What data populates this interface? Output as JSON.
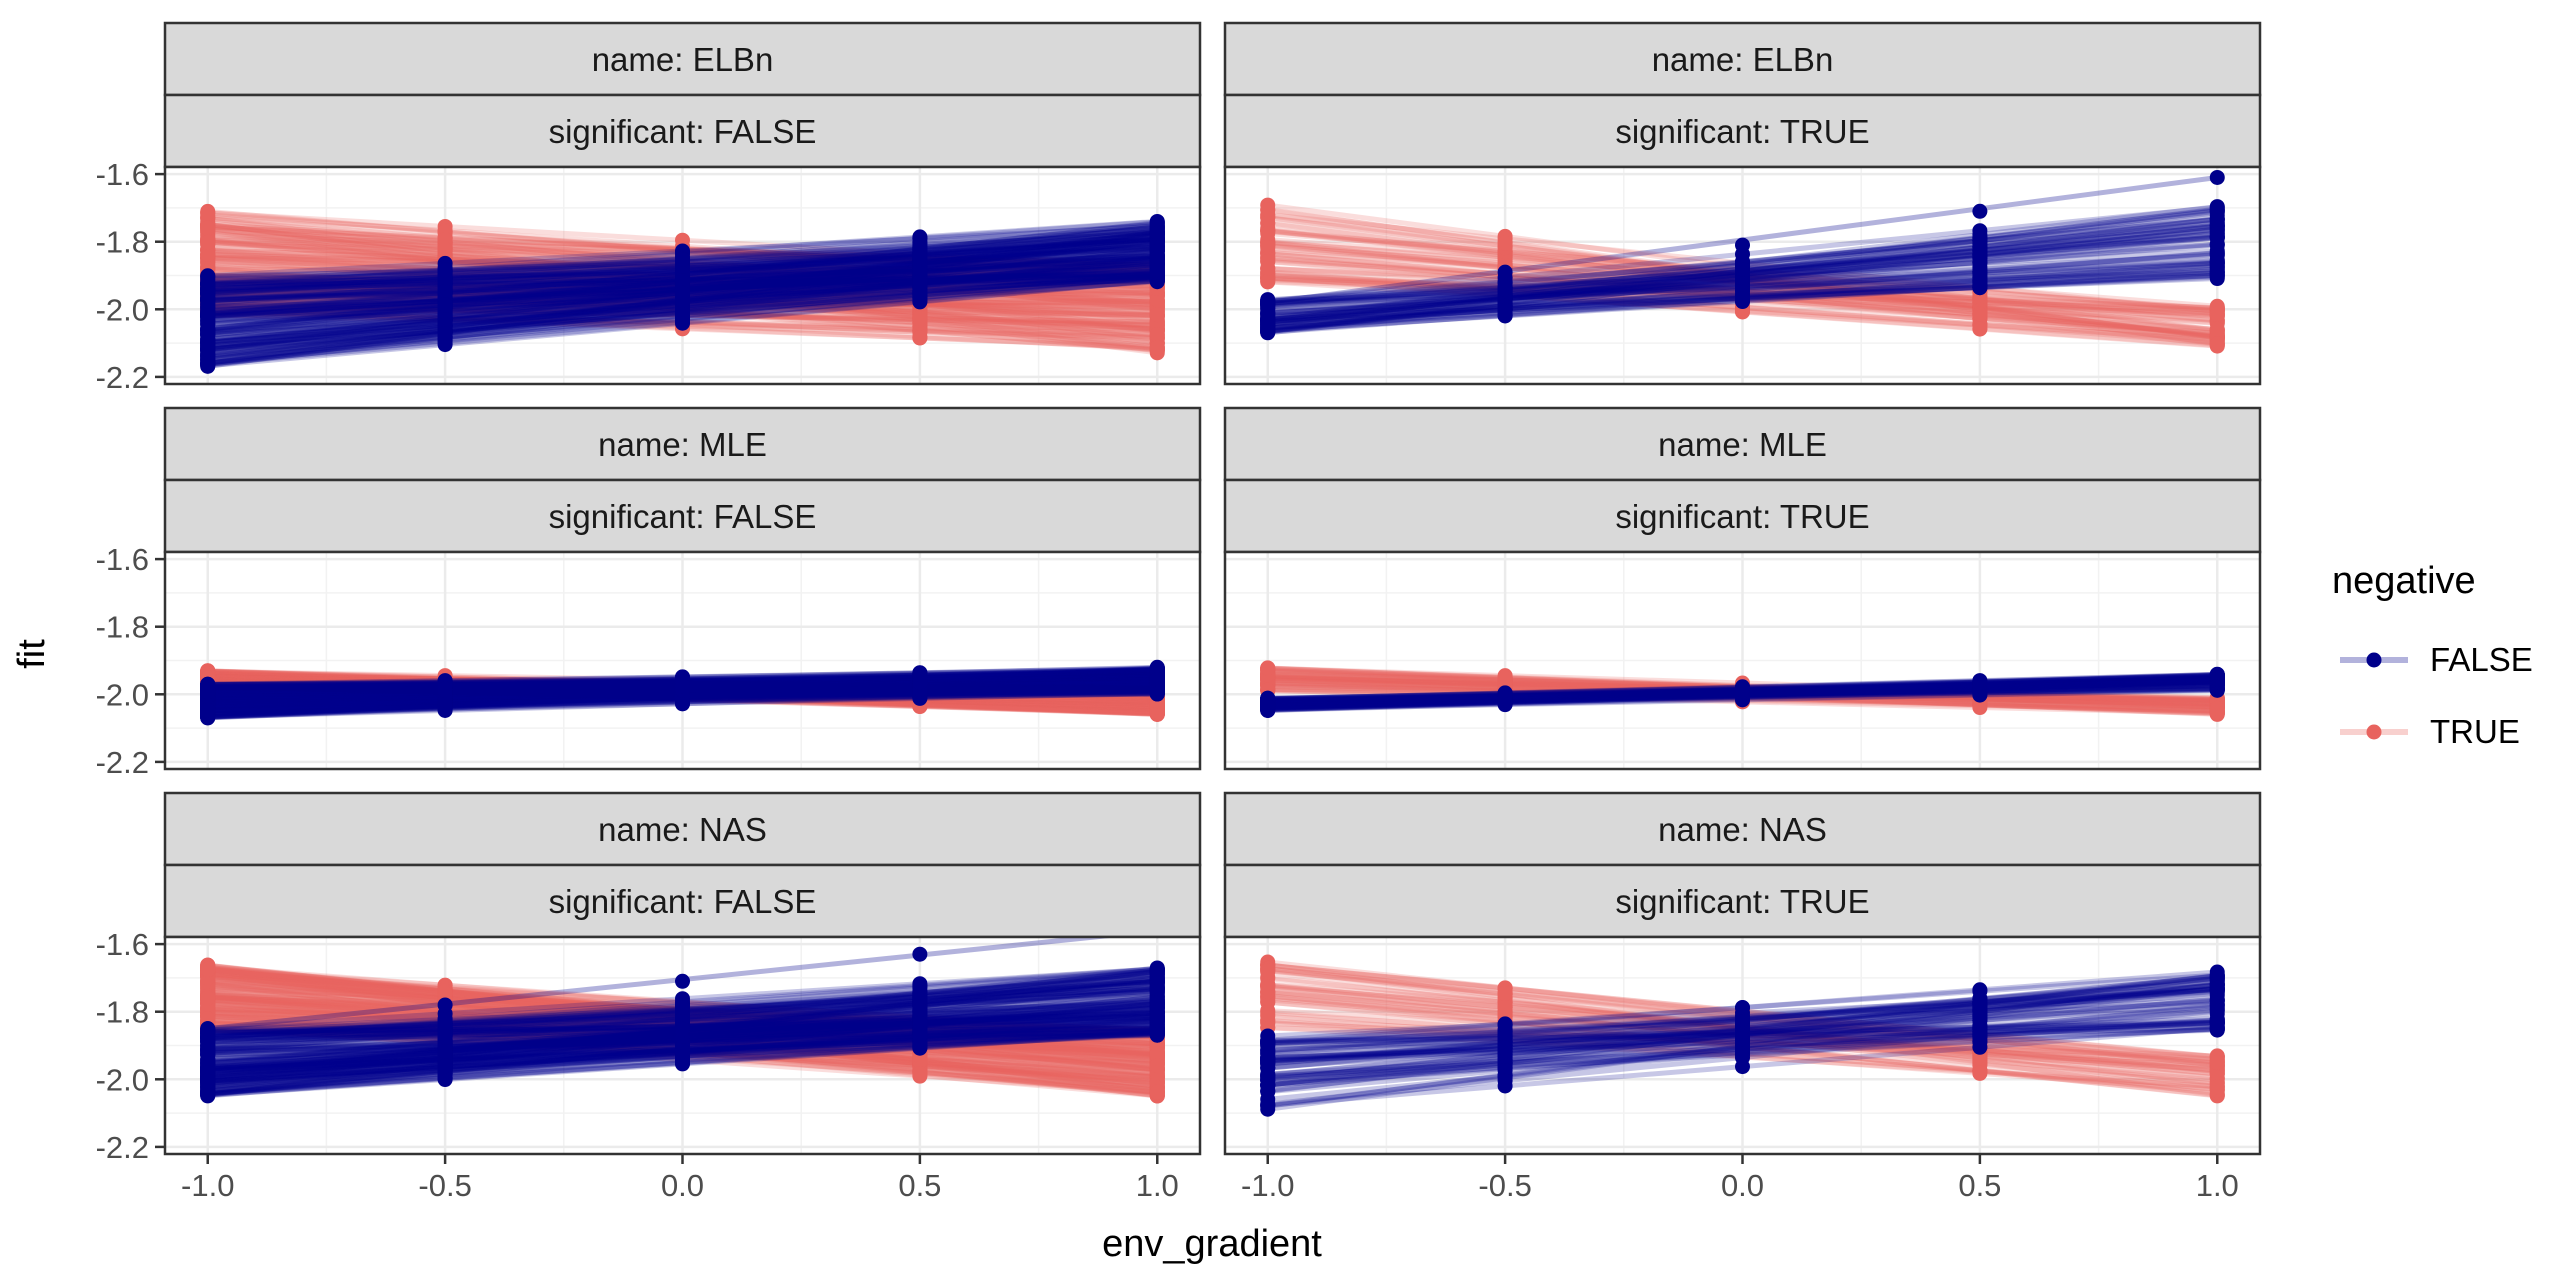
{
  "chart_data": {
    "type": "line",
    "facet_rows_var": "name",
    "facet_cols_var": "significant",
    "xlabel": "env_gradient",
    "ylabel": "fit",
    "xlim": [
      -1.0,
      1.0
    ],
    "ylim": [
      -2.2,
      -1.6
    ],
    "x_ticks": [
      -1.0,
      -0.5,
      0.0,
      0.5,
      1.0
    ],
    "x_tick_labels": [
      "-1.0",
      "-0.5",
      "0.0",
      "0.5",
      "1.0"
    ],
    "y_ticks": [
      -2.2,
      -2.0,
      -1.8,
      -1.6
    ],
    "y_tick_labels": [
      "-2.2",
      "-2.0",
      "-1.8",
      "-1.6"
    ],
    "grid": true,
    "legend": {
      "title": "negative",
      "position": "right",
      "entries": [
        {
          "label": "FALSE",
          "color": "#00008B"
        },
        {
          "label": "TRUE",
          "color": "#E8635E"
        }
      ]
    },
    "x_points": [
      -1.0,
      -0.5,
      0.0,
      0.5,
      1.0
    ],
    "panels": [
      {
        "strip_top": "name: ELBn",
        "strip_bottom": "significant: FALSE",
        "row": 0,
        "col": 0,
        "series": [
          {
            "negative": "FALSE",
            "color": "#00008B",
            "count": 150,
            "y_at_minus1": [
              -2.17,
              -1.9
            ],
            "y_at_plus1": [
              -1.92,
              -1.74
            ]
          },
          {
            "negative": "TRUE",
            "color": "#E8635E",
            "count": 150,
            "y_at_minus1": [
              -2.02,
              -1.71
            ],
            "y_at_plus1": [
              -2.13,
              -1.86
            ]
          }
        ],
        "outliers": []
      },
      {
        "strip_top": "name: ELBn",
        "strip_bottom": "significant: TRUE",
        "row": 0,
        "col": 1,
        "series": [
          {
            "negative": "FALSE",
            "color": "#00008B",
            "count": 60,
            "y_at_minus1": [
              -2.07,
              -1.97
            ],
            "y_at_plus1": [
              -1.91,
              -1.69
            ]
          },
          {
            "negative": "TRUE",
            "color": "#E8635E",
            "count": 50,
            "y_at_minus1": [
              -1.92,
              -1.69
            ],
            "y_at_plus1": [
              -2.11,
              -1.99
            ]
          }
        ],
        "outliers": [
          {
            "color": "#00008B",
            "y": [
              -1.98,
              -1.89,
              -1.81,
              -1.71,
              -1.61
            ]
          }
        ]
      },
      {
        "strip_top": "name: MLE",
        "strip_bottom": "significant: FALSE",
        "row": 1,
        "col": 0,
        "series": [
          {
            "negative": "FALSE",
            "color": "#00008B",
            "count": 150,
            "y_at_minus1": [
              -2.07,
              -1.97
            ],
            "y_at_plus1": [
              -2.0,
              -1.92
            ]
          },
          {
            "negative": "TRUE",
            "color": "#E8635E",
            "count": 150,
            "y_at_minus1": [
              -1.98,
              -1.93
            ],
            "y_at_plus1": [
              -2.06,
              -1.98
            ]
          }
        ],
        "outliers": []
      },
      {
        "strip_top": "name: MLE",
        "strip_bottom": "significant: TRUE",
        "row": 1,
        "col": 1,
        "series": [
          {
            "negative": "FALSE",
            "color": "#00008B",
            "count": 60,
            "y_at_minus1": [
              -2.05,
              -2.01
            ],
            "y_at_plus1": [
              -1.99,
              -1.94
            ]
          },
          {
            "negative": "TRUE",
            "color": "#E8635E",
            "count": 50,
            "y_at_minus1": [
              -1.99,
              -1.92
            ],
            "y_at_plus1": [
              -2.06,
              -2.01
            ]
          }
        ],
        "outliers": []
      },
      {
        "strip_top": "name: NAS",
        "strip_bottom": "significant: FALSE",
        "row": 2,
        "col": 0,
        "series": [
          {
            "negative": "FALSE",
            "color": "#00008B",
            "count": 150,
            "y_at_minus1": [
              -2.05,
              -1.85
            ],
            "y_at_plus1": [
              -1.87,
              -1.67
            ]
          },
          {
            "negative": "TRUE",
            "color": "#E8635E",
            "count": 150,
            "y_at_minus1": [
              -1.86,
              -1.66
            ],
            "y_at_plus1": [
              -2.05,
              -1.85
            ]
          }
        ],
        "outliers": [
          {
            "color": "#00008B",
            "y": [
              -1.85,
              -1.78,
              -1.71,
              -1.63,
              -1.56
            ]
          }
        ]
      },
      {
        "strip_top": "name: NAS",
        "strip_bottom": "significant: TRUE",
        "row": 2,
        "col": 1,
        "series": [
          {
            "negative": "FALSE",
            "color": "#00008B",
            "count": 60,
            "y_at_minus1": [
              -2.09,
              -1.87
            ],
            "y_at_plus1": [
              -1.86,
              -1.68
            ]
          },
          {
            "negative": "TRUE",
            "color": "#E8635E",
            "count": 40,
            "y_at_minus1": [
              -1.86,
              -1.65
            ],
            "y_at_plus1": [
              -2.05,
              -1.93
            ]
          }
        ],
        "outliers": []
      }
    ]
  }
}
